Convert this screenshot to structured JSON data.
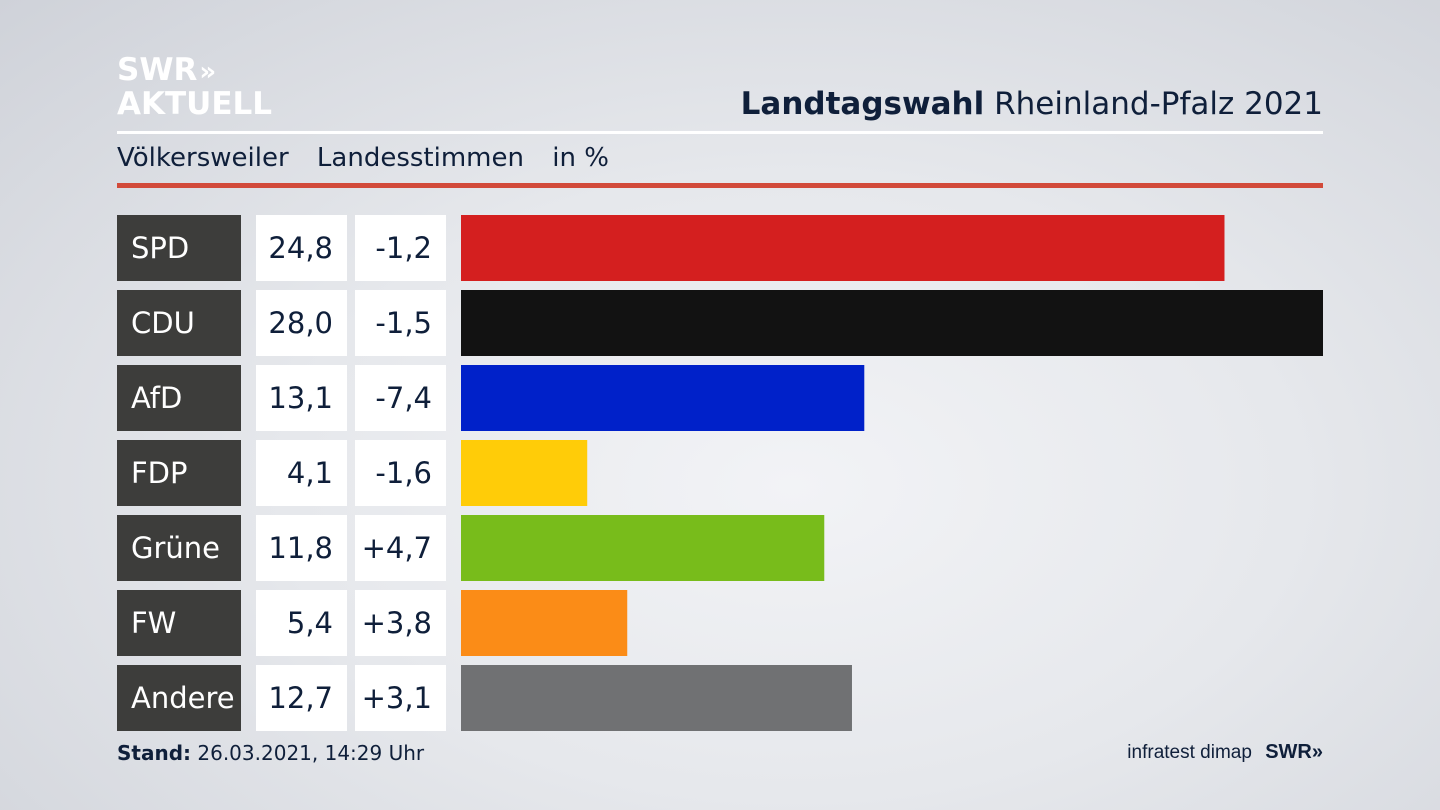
{
  "brand": {
    "logo_line1": "SWR",
    "logo_arrows": "»",
    "logo_line2": "AKTUELL",
    "footer_logo": "SWR»"
  },
  "header": {
    "title_bold": "Landtagswahl",
    "title_regular": "Rheinland-Pfalz 2021"
  },
  "subheader": {
    "place": "Völkersweiler",
    "type": "Landesstimmen",
    "unit": "in %"
  },
  "footer": {
    "stand_label": "Stand:",
    "stand_value": "26.03.2021, 14:29 Uhr",
    "source": "infratest dimap"
  },
  "colors": {
    "label_bg": "#3d3d3b",
    "rule_red": "#d24a3a"
  },
  "chart_data": {
    "type": "bar",
    "orientation": "horizontal",
    "categories": [
      "SPD",
      "CDU",
      "AfD",
      "FDP",
      "Grüne",
      "FW",
      "Andere"
    ],
    "values": [
      24.8,
      28.0,
      13.1,
      4.1,
      11.8,
      5.4,
      12.7
    ],
    "value_labels": [
      "24,8",
      "28,0",
      "13,1",
      "4,1",
      "11,8",
      "5,4",
      "12,7"
    ],
    "change_labels": [
      "-1,2",
      "-1,5",
      "-7,4",
      "-1,6",
      "+4,7",
      "+3,8",
      "+3,1"
    ],
    "change_values": [
      -1.2,
      -1.5,
      -7.4,
      -1.6,
      4.7,
      3.8,
      3.1
    ],
    "colors": [
      "#d41f1f",
      "#121212",
      "#0021c9",
      "#ffcc08",
      "#78bc1b",
      "#fb8c17",
      "#707173"
    ],
    "xlim": [
      0,
      28.0
    ],
    "grid": false
  }
}
